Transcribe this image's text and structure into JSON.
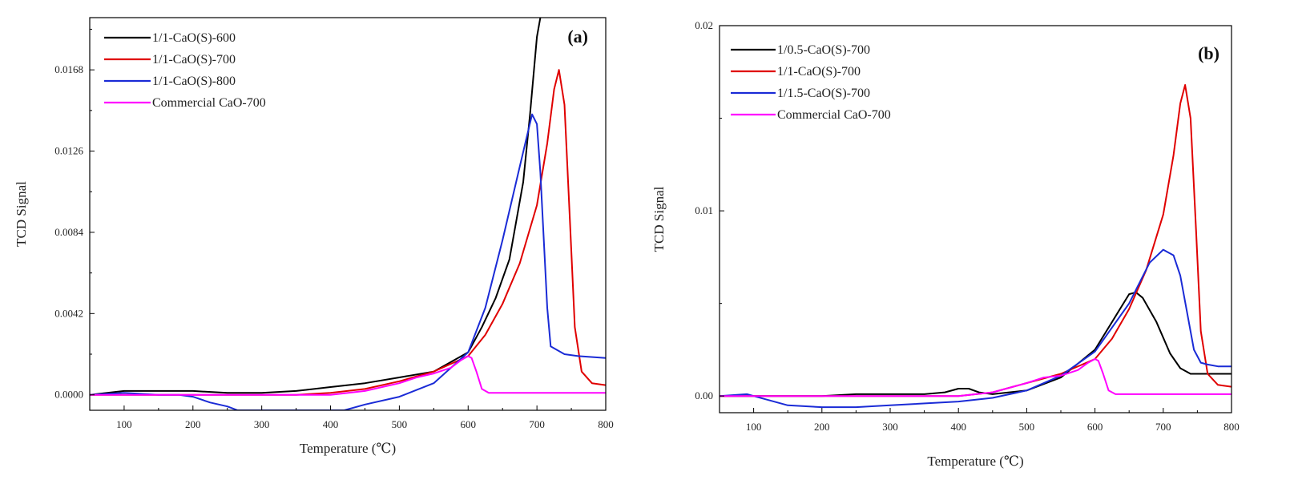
{
  "chart_data": [
    {
      "type": "line",
      "panel_label": "(a)",
      "xlabel": "Temperature (℃)",
      "ylabel": "TCD Signal",
      "xlim": [
        50,
        800
      ],
      "ylim": [
        -0.0008,
        0.0195
      ],
      "xticks": [
        100,
        200,
        300,
        400,
        500,
        600,
        700,
        800
      ],
      "yticks": [
        0.0,
        0.0042,
        0.0084,
        0.0126,
        0.0168
      ],
      "ytick_labels": [
        "0.0000",
        "0.0042",
        "0.0084",
        "0.0126",
        "0.0168"
      ],
      "grid": false,
      "legend_position": "top-left",
      "series": [
        {
          "name": "1/1-CaO(S)-600",
          "color": "#000000",
          "x": [
            50,
            100,
            150,
            200,
            250,
            300,
            350,
            400,
            450,
            500,
            550,
            600,
            620,
            640,
            660,
            680,
            690,
            700,
            705
          ],
          "y": [
            0.0,
            0.0002,
            0.0002,
            0.0002,
            0.0001,
            0.0001,
            0.0002,
            0.0004,
            0.0006,
            0.0009,
            0.0012,
            0.0022,
            0.0035,
            0.005,
            0.007,
            0.011,
            0.0145,
            0.0185,
            0.0195
          ]
        },
        {
          "name": "1/1-CaO(S)-700",
          "color": "#e00000",
          "x": [
            50,
            100,
            150,
            200,
            250,
            300,
            350,
            400,
            450,
            500,
            550,
            600,
            625,
            650,
            675,
            700,
            715,
            725,
            732,
            740,
            748,
            755,
            765,
            780,
            800
          ],
          "y": [
            0.0,
            0.0,
            0.0,
            0.0,
            0.0,
            0.0,
            0.0,
            0.0001,
            0.0003,
            0.0007,
            0.0012,
            0.002,
            0.0031,
            0.0047,
            0.0068,
            0.0098,
            0.013,
            0.0158,
            0.0168,
            0.015,
            0.009,
            0.0035,
            0.0012,
            0.0006,
            0.0005
          ]
        },
        {
          "name": "1/1-CaO(S)-800",
          "color": "#1a2bd6",
          "x": [
            50,
            100,
            150,
            180,
            200,
            225,
            250,
            265,
            420,
            450,
            500,
            550,
            600,
            625,
            650,
            675,
            693,
            700,
            705,
            710,
            715,
            720,
            740,
            760,
            800
          ],
          "y": [
            0.0,
            0.0001,
            0.0,
            0.0,
            -0.0001,
            -0.0004,
            -0.0006,
            -0.0008,
            -0.0008,
            -0.0005,
            -0.0001,
            0.0006,
            0.0022,
            0.0045,
            0.008,
            0.0118,
            0.0145,
            0.014,
            0.0115,
            0.008,
            0.0045,
            0.0025,
            0.0021,
            0.002,
            0.0019
          ]
        },
        {
          "name": "Commercial CaO-700",
          "color": "#ff00ff",
          "x": [
            50,
            100,
            200,
            300,
            400,
            450,
            500,
            525,
            550,
            575,
            590,
            600,
            605,
            612,
            620,
            630,
            700,
            800
          ],
          "y": [
            0.0,
            0.0,
            0.0,
            0.0,
            0.0,
            0.0002,
            0.0006,
            0.0009,
            0.0011,
            0.0014,
            0.0018,
            0.002,
            0.0019,
            0.0012,
            0.0003,
            0.0001,
            0.0001,
            0.0001
          ]
        }
      ]
    },
    {
      "type": "line",
      "panel_label": "(b)",
      "xlabel": "Temperature (℃)",
      "ylabel": "TCD Signal",
      "xlim": [
        50,
        800
      ],
      "ylim": [
        -0.0009,
        0.02
      ],
      "xticks": [
        100,
        200,
        300,
        400,
        500,
        600,
        700,
        800
      ],
      "yticks": [
        0.0,
        0.01,
        0.02
      ],
      "ytick_labels": [
        "0.00",
        "0.01",
        "0.02"
      ],
      "grid": false,
      "legend_position": "top-left",
      "series": [
        {
          "name": "1/0.5-CaO(S)-700",
          "color": "#000000",
          "x": [
            50,
            100,
            150,
            200,
            250,
            300,
            350,
            380,
            400,
            415,
            430,
            450,
            500,
            550,
            600,
            625,
            650,
            660,
            670,
            690,
            710,
            725,
            740,
            760,
            800
          ],
          "y": [
            0.0,
            0.0,
            0.0,
            0.0,
            0.0001,
            0.0001,
            0.0001,
            0.0002,
            0.0004,
            0.0004,
            0.0002,
            0.0001,
            0.0003,
            0.001,
            0.0025,
            0.004,
            0.0055,
            0.0056,
            0.0053,
            0.004,
            0.0023,
            0.0015,
            0.0012,
            0.0012,
            0.0012
          ]
        },
        {
          "name": "1/1-CaO(S)-700",
          "color": "#e00000",
          "x": [
            50,
            100,
            150,
            200,
            250,
            300,
            350,
            400,
            450,
            500,
            550,
            600,
            625,
            650,
            675,
            700,
            715,
            725,
            732,
            740,
            748,
            755,
            765,
            780,
            800
          ],
          "y": [
            0.0,
            0.0,
            0.0,
            0.0,
            0.0,
            0.0,
            0.0,
            0.0,
            0.0002,
            0.0007,
            0.0012,
            0.002,
            0.0031,
            0.0047,
            0.0068,
            0.0098,
            0.013,
            0.0158,
            0.0168,
            0.015,
            0.009,
            0.0035,
            0.0012,
            0.0006,
            0.0005
          ]
        },
        {
          "name": "1/1.5-CaO(S)-700",
          "color": "#1a2bd6",
          "x": [
            50,
            90,
            120,
            150,
            200,
            250,
            300,
            400,
            450,
            500,
            550,
            600,
            650,
            680,
            700,
            715,
            725,
            735,
            745,
            755,
            765,
            780,
            800
          ],
          "y": [
            0.0,
            0.0001,
            -0.0002,
            -0.0005,
            -0.0006,
            -0.0006,
            -0.0005,
            -0.0003,
            -0.0001,
            0.0003,
            0.0011,
            0.0024,
            0.005,
            0.0072,
            0.0079,
            0.0076,
            0.0065,
            0.0045,
            0.0025,
            0.0018,
            0.0017,
            0.0016,
            0.0016
          ]
        },
        {
          "name": "Commercial CaO-700",
          "color": "#ff00ff",
          "x": [
            50,
            100,
            200,
            300,
            400,
            450,
            500,
            525,
            550,
            575,
            590,
            600,
            605,
            612,
            620,
            630,
            700,
            800
          ],
          "y": [
            0.0,
            0.0,
            0.0,
            0.0,
            0.0,
            0.0002,
            0.0007,
            0.001,
            0.0011,
            0.0014,
            0.0018,
            0.002,
            0.0019,
            0.0012,
            0.0003,
            0.0001,
            0.0001,
            0.0001
          ]
        }
      ]
    }
  ]
}
